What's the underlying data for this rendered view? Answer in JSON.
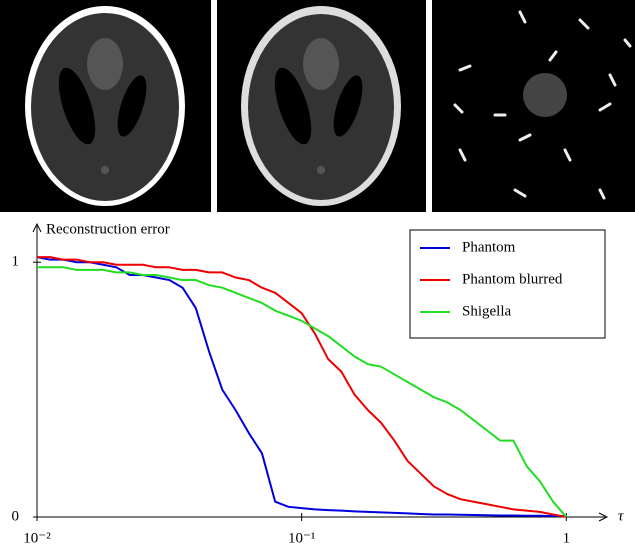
{
  "chart_data": {
    "type": "line",
    "y_label": "Reconstruction error",
    "x_label": "τ",
    "x": [
      0.01,
      0.01122,
      0.01259,
      0.01413,
      0.01585,
      0.01778,
      0.01995,
      0.02239,
      0.02512,
      0.02818,
      0.03162,
      0.03548,
      0.03981,
      0.04467,
      0.05012,
      0.05623,
      0.0631,
      0.07079,
      0.07943,
      0.08913,
      0.1,
      0.1122,
      0.1259,
      0.1413,
      0.1585,
      0.1778,
      0.1995,
      0.2239,
      0.2512,
      0.2818,
      0.3162,
      0.3548,
      0.3981,
      0.4467,
      0.5012,
      0.5623,
      0.631,
      0.7079,
      0.7943,
      0.8913,
      1
    ],
    "series": [
      {
        "name": "Phantom",
        "color": "#0000dd",
        "values": [
          1.02,
          1.01,
          1.01,
          1.0,
          1.0,
          0.99,
          0.98,
          0.95,
          0.95,
          0.94,
          0.93,
          0.9,
          0.82,
          0.65,
          0.5,
          0.42,
          0.33,
          0.25,
          0.06,
          0.04,
          0.035,
          0.03,
          0.027,
          0.025,
          0.022,
          0.02,
          0.018,
          0.016,
          0.014,
          0.012,
          0.01,
          0.01,
          0.009,
          0.008,
          0.007,
          0.006,
          0.006,
          0.005,
          0.005,
          0.004,
          0.004
        ]
      },
      {
        "name": "Phantom blurred",
        "color": "#ee0000",
        "values": [
          1.02,
          1.02,
          1.01,
          1.01,
          1.0,
          1.0,
          0.99,
          0.99,
          0.99,
          0.98,
          0.98,
          0.97,
          0.97,
          0.96,
          0.96,
          0.94,
          0.93,
          0.9,
          0.88,
          0.84,
          0.8,
          0.72,
          0.62,
          0.57,
          0.48,
          0.42,
          0.37,
          0.3,
          0.22,
          0.17,
          0.12,
          0.09,
          0.07,
          0.06,
          0.05,
          0.04,
          0.03,
          0.025,
          0.02,
          0.01,
          0.0
        ]
      },
      {
        "name": "Shigella",
        "color": "#22dd22",
        "values": [
          0.98,
          0.98,
          0.98,
          0.97,
          0.97,
          0.97,
          0.96,
          0.96,
          0.95,
          0.95,
          0.94,
          0.93,
          0.93,
          0.91,
          0.9,
          0.88,
          0.86,
          0.84,
          0.81,
          0.79,
          0.77,
          0.74,
          0.71,
          0.67,
          0.63,
          0.6,
          0.59,
          0.56,
          0.53,
          0.5,
          0.47,
          0.45,
          0.42,
          0.38,
          0.34,
          0.3,
          0.3,
          0.2,
          0.14,
          0.06,
          0.0
        ]
      }
    ],
    "xlog": true,
    "xlim": [
      0.01,
      1.4
    ],
    "ylim": [
      0,
      1.15
    ],
    "xticks": [
      {
        "value": 0.01,
        "label": "10⁻²"
      },
      {
        "value": 0.1,
        "label": "10⁻¹"
      },
      1
    ],
    "yticks": [
      0,
      1
    ],
    "legend": "upper right"
  }
}
